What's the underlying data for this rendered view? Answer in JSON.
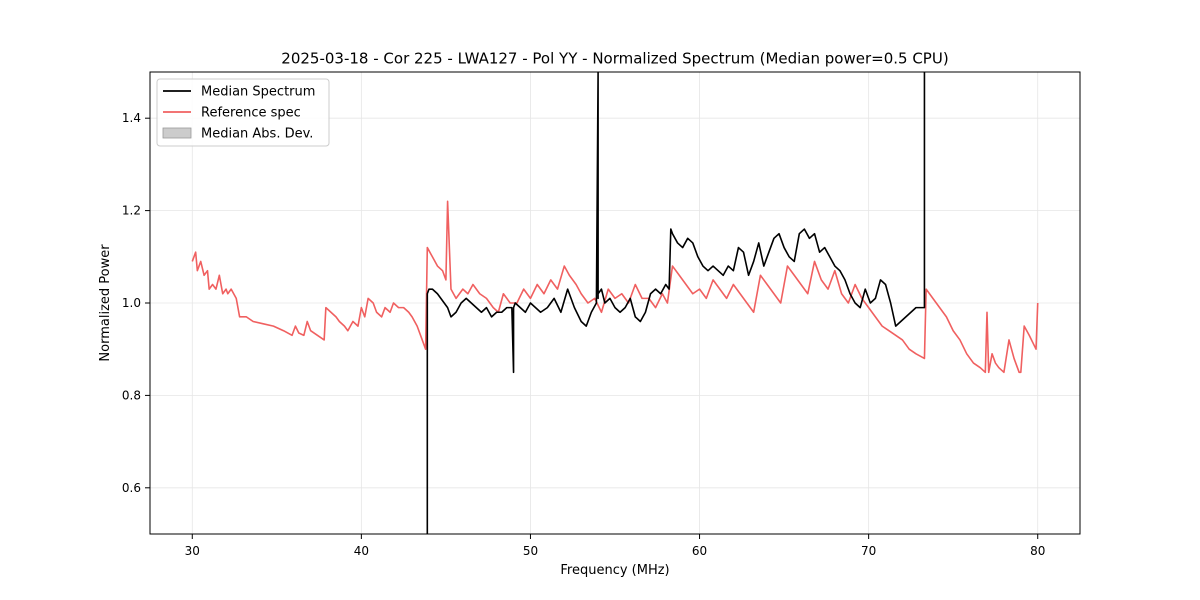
{
  "chart_data": {
    "type": "line",
    "title": "2025-03-18 - Cor 225 - LWA127 - Pol YY - Normalized Spectrum (Median power=0.5 CPU)",
    "xlabel": "Frequency (MHz)",
    "ylabel": "Normalized Power",
    "xlim": [
      27.5,
      82.5
    ],
    "ylim": [
      0.5,
      1.5
    ],
    "xticks": [
      30,
      40,
      50,
      60,
      70,
      80
    ],
    "yticks": [
      0.6,
      0.8,
      1.0,
      1.2,
      1.4
    ],
    "xtick_labels": [
      "30",
      "40",
      "50",
      "60",
      "70",
      "80"
    ],
    "ytick_labels": [
      "0.6",
      "0.8",
      "1.0",
      "1.2",
      "1.4"
    ],
    "grid": true,
    "legend_position": "top-left",
    "legend": [
      {
        "label": "Median Spectrum",
        "kind": "line",
        "color": "#000000"
      },
      {
        "label": "Reference spec",
        "kind": "line",
        "color": "#f06060"
      },
      {
        "label": "Median Abs. Dev.",
        "kind": "patch",
        "color": "#cccccc"
      }
    ],
    "series": [
      {
        "name": "Reference spec",
        "color": "#f06060",
        "x": [
          30.0,
          30.2,
          30.3,
          30.5,
          30.7,
          30.9,
          31.0,
          31.2,
          31.4,
          31.6,
          31.8,
          32.0,
          32.1,
          32.3,
          32.6,
          32.8,
          32.9,
          33.2,
          33.6,
          34.2,
          34.8,
          35.4,
          35.9,
          36.1,
          36.3,
          36.6,
          36.8,
          37.0,
          37.4,
          37.8,
          37.9,
          38.5,
          38.7,
          39.0,
          39.2,
          39.5,
          39.8,
          40.0,
          40.2,
          40.4,
          40.7,
          40.9,
          41.2,
          41.4,
          41.7,
          41.9,
          42.2,
          42.5,
          42.8,
          43.0,
          43.3,
          43.6,
          43.8,
          43.9,
          44.2,
          44.5,
          44.8,
          45.0,
          45.1,
          45.3,
          45.6,
          46.0,
          46.3,
          46.6,
          47.0,
          47.4,
          47.8,
          48.1,
          48.4,
          48.8,
          49.2,
          49.6,
          50.0,
          50.4,
          50.8,
          51.2,
          51.6,
          52.0,
          52.3,
          52.7,
          53.0,
          53.4,
          53.8,
          54.2,
          54.6,
          55.0,
          55.4,
          55.8,
          56.2,
          56.6,
          57.0,
          57.4,
          57.8,
          58.1,
          58.4,
          58.8,
          59.2,
          59.6,
          60.0,
          60.4,
          60.8,
          61.2,
          61.6,
          62.0,
          62.4,
          62.8,
          63.2,
          63.6,
          64.0,
          64.4,
          64.8,
          65.2,
          65.6,
          66.0,
          66.4,
          66.8,
          67.2,
          67.6,
          68.0,
          68.4,
          68.8,
          69.2,
          69.6,
          70.0,
          70.4,
          70.8,
          71.2,
          71.6,
          72.0,
          72.4,
          72.8,
          73.3,
          73.4,
          73.8,
          74.2,
          74.6,
          75.0,
          75.4,
          75.8,
          76.2,
          76.6,
          76.9,
          77.0,
          77.1,
          77.3,
          77.5,
          77.7,
          78.0,
          78.3,
          78.6,
          78.9,
          79.0,
          79.2,
          79.5,
          79.9,
          80.0
        ],
        "values": [
          1.09,
          1.11,
          1.07,
          1.09,
          1.06,
          1.07,
          1.03,
          1.04,
          1.03,
          1.06,
          1.02,
          1.03,
          1.02,
          1.03,
          1.01,
          0.97,
          0.97,
          0.97,
          0.96,
          0.955,
          0.95,
          0.94,
          0.93,
          0.95,
          0.935,
          0.93,
          0.96,
          0.94,
          0.93,
          0.92,
          0.99,
          0.97,
          0.96,
          0.95,
          0.94,
          0.96,
          0.95,
          0.99,
          0.97,
          1.01,
          1.0,
          0.98,
          0.97,
          0.99,
          0.98,
          1.0,
          0.99,
          0.99,
          0.98,
          0.97,
          0.95,
          0.92,
          0.9,
          1.12,
          1.1,
          1.08,
          1.07,
          1.05,
          1.22,
          1.03,
          1.01,
          1.03,
          1.02,
          1.04,
          1.02,
          1.01,
          0.99,
          0.98,
          1.02,
          1.0,
          1.0,
          1.03,
          1.01,
          1.04,
          1.02,
          1.05,
          1.03,
          1.08,
          1.06,
          1.04,
          1.02,
          1.0,
          1.01,
          0.98,
          1.03,
          1.01,
          1.02,
          1.0,
          1.04,
          1.01,
          1.01,
          0.99,
          1.02,
          1.0,
          1.08,
          1.06,
          1.04,
          1.02,
          1.03,
          1.01,
          1.05,
          1.03,
          1.01,
          1.04,
          1.02,
          1.0,
          0.98,
          1.06,
          1.04,
          1.02,
          1.0,
          1.08,
          1.06,
          1.04,
          1.02,
          1.09,
          1.05,
          1.03,
          1.07,
          1.02,
          1.0,
          1.04,
          1.01,
          0.99,
          0.97,
          0.95,
          0.94,
          0.93,
          0.92,
          0.9,
          0.89,
          0.88,
          1.03,
          1.01,
          0.99,
          0.97,
          0.94,
          0.92,
          0.89,
          0.87,
          0.86,
          0.85,
          0.98,
          0.85,
          0.89,
          0.87,
          0.86,
          0.85,
          0.92,
          0.88,
          0.85,
          0.85,
          0.95,
          0.93,
          0.9,
          1.0
        ]
      },
      {
        "name": "Median Spectrum",
        "color": "#000000",
        "x": [
          43.9,
          43.9,
          43.9,
          44.0,
          44.2,
          44.5,
          44.7,
          44.9,
          45.1,
          45.3,
          45.6,
          45.9,
          46.2,
          46.5,
          46.8,
          47.1,
          47.4,
          47.7,
          48.0,
          48.3,
          48.6,
          48.9,
          49.0,
          49.0,
          49.0,
          49.1,
          49.4,
          49.7,
          50.0,
          50.3,
          50.6,
          51.0,
          51.4,
          51.8,
          52.2,
          52.6,
          53.0,
          53.3,
          53.6,
          53.9,
          54.0,
          54.0,
          54.0,
          54.2,
          54.4,
          54.7,
          55.0,
          55.3,
          55.6,
          55.9,
          56.2,
          56.5,
          56.8,
          57.1,
          57.4,
          57.7,
          58.0,
          58.2,
          58.3,
          58.4,
          58.7,
          59.0,
          59.3,
          59.6,
          59.9,
          60.2,
          60.5,
          60.8,
          61.1,
          61.4,
          61.7,
          62.0,
          62.3,
          62.6,
          62.9,
          63.2,
          63.5,
          63.8,
          64.1,
          64.4,
          64.7,
          65.0,
          65.3,
          65.6,
          65.9,
          66.2,
          66.5,
          66.8,
          67.1,
          67.4,
          67.7,
          68.0,
          68.3,
          68.6,
          68.9,
          69.2,
          69.5,
          69.8,
          70.1,
          70.4,
          70.7,
          71.0,
          71.3,
          71.6,
          71.9,
          72.2,
          72.5,
          72.8,
          73.0,
          73.3,
          73.3,
          73.3
        ],
        "values": [
          0.5,
          1.02,
          1.02,
          1.03,
          1.03,
          1.02,
          1.01,
          1.0,
          0.99,
          0.97,
          0.98,
          1.0,
          1.01,
          1.0,
          0.99,
          0.98,
          0.99,
          0.97,
          0.98,
          0.98,
          0.99,
          0.99,
          0.85,
          0.99,
          0.99,
          1.0,
          0.99,
          0.98,
          1.0,
          0.99,
          0.98,
          0.99,
          1.01,
          0.98,
          1.03,
          0.99,
          0.96,
          0.95,
          0.98,
          1.0,
          1.5,
          1.01,
          1.02,
          1.03,
          1.0,
          1.01,
          0.99,
          0.98,
          0.99,
          1.01,
          0.97,
          0.96,
          0.98,
          1.02,
          1.03,
          1.02,
          1.04,
          1.03,
          1.16,
          1.15,
          1.13,
          1.12,
          1.14,
          1.13,
          1.1,
          1.08,
          1.07,
          1.08,
          1.07,
          1.06,
          1.08,
          1.07,
          1.12,
          1.11,
          1.06,
          1.09,
          1.13,
          1.08,
          1.11,
          1.14,
          1.15,
          1.12,
          1.1,
          1.09,
          1.15,
          1.16,
          1.14,
          1.15,
          1.11,
          1.12,
          1.1,
          1.08,
          1.07,
          1.05,
          1.02,
          1.0,
          0.99,
          1.03,
          1.0,
          1.01,
          1.05,
          1.04,
          1.0,
          0.95,
          0.96,
          0.97,
          0.98,
          0.99,
          0.99,
          0.99,
          1.5,
          1.02
        ]
      }
    ]
  }
}
